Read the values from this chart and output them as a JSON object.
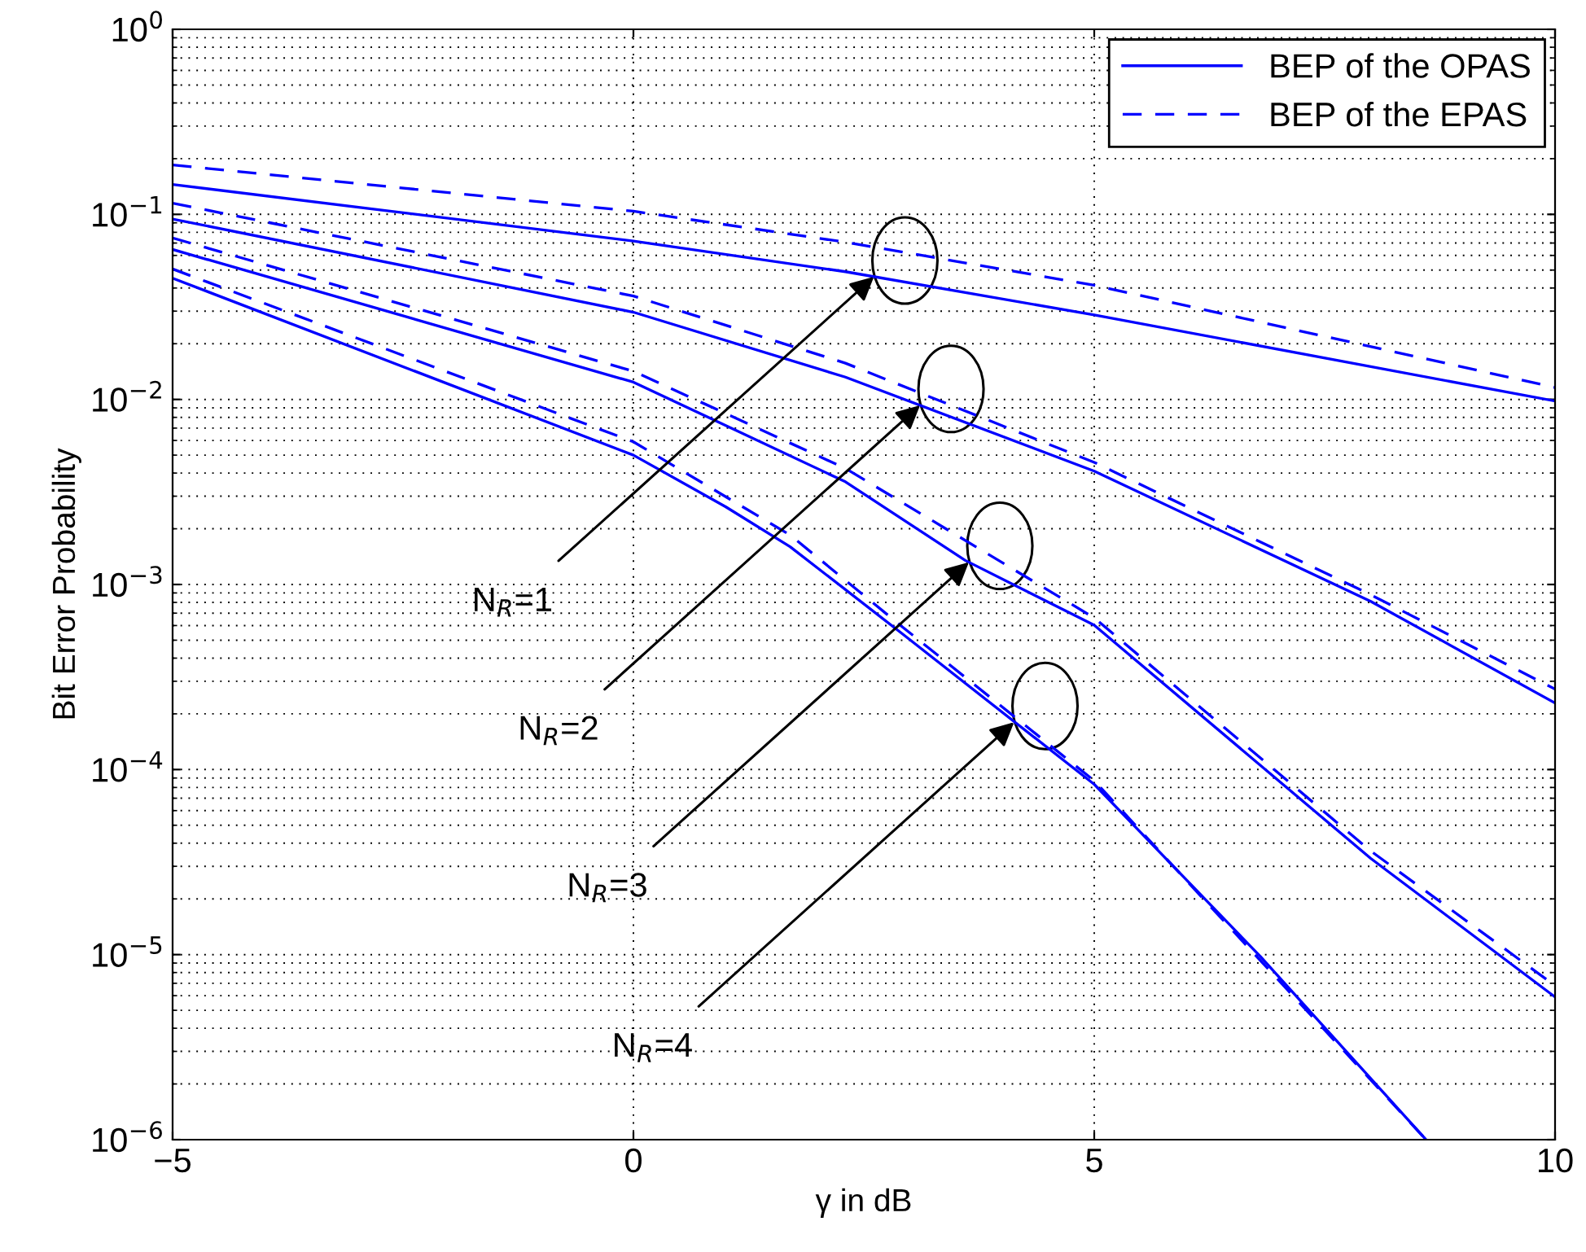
{
  "chart_data": {
    "type": "line",
    "xlabel": "γ in dB",
    "ylabel": "Bit Error Probability",
    "log": "y",
    "grid": true,
    "legend": "top right",
    "xlim": [
      -5,
      10
    ],
    "xticks": [
      {
        "value": -5,
        "label": "−5"
      },
      0,
      5,
      10
    ],
    "ylim": [
      1e-06,
      1
    ],
    "yticks": [
      {
        "value": 1e-06,
        "label": "10$^{−6}$"
      },
      {
        "value": 1e-05,
        "label": "10$^{−5}$"
      },
      {
        "value": 0.0001,
        "label": "10$^{−4}$"
      },
      {
        "value": 0.001,
        "label": "10$^{−3}$"
      },
      {
        "value": 0.01,
        "label": "10$^{−2}$"
      },
      {
        "value": 0.1,
        "label": "10$^{−1}$"
      },
      {
        "value": 1,
        "label": "10$^{0}$"
      }
    ],
    "series": [
      {
        "name": "BEP of the OPAS",
        "color": "#0000ff",
        "line_style": "solid",
        "x": [
          -5,
          0,
          2.3,
          5,
          10
        ],
        "values": [
          0.145,
          0.0718,
          0.049,
          0.0286,
          0.0098
        ]
      },
      {
        "name": "BEP of the EPAS",
        "color": "#0000ff",
        "line_style": "dashed",
        "x": [
          -5,
          0,
          2.3,
          5,
          10
        ],
        "values": [
          0.185,
          0.104,
          0.0708,
          0.0414,
          0.0116
        ]
      },
      {
        "color": "#0000ff",
        "line_style": "solid",
        "x": [
          -5,
          0,
          2.3,
          5,
          8,
          10
        ],
        "values": [
          0.0944,
          0.0296,
          0.0132,
          0.0041,
          0.00081,
          0.000229
        ]
      },
      {
        "color": "#0000ff",
        "line_style": "dashed",
        "x": [
          -5,
          0,
          2.3,
          5,
          8,
          10
        ],
        "values": [
          0.115,
          0.0362,
          0.0157,
          0.00457,
          0.00088,
          0.000272
        ]
      },
      {
        "color": "#0000ff",
        "line_style": "solid",
        "x": [
          -5,
          0,
          2.3,
          3.6,
          5,
          8,
          10
        ],
        "values": [
          0.0646,
          0.0124,
          0.00359,
          0.00135,
          0.000603,
          3.31e-05,
          5.9e-06
        ]
      },
      {
        "color": "#0000ff",
        "line_style": "dashed",
        "x": [
          -5,
          0,
          2.3,
          5,
          8,
          10
        ],
        "values": [
          0.0746,
          0.0142,
          0.00424,
          0.00066,
          3.63e-05,
          6.8e-06
        ]
      },
      {
        "color": "#0000ff",
        "line_style": "solid",
        "x": [
          -5,
          0,
          1,
          1.7,
          2.9,
          5,
          6.8,
          8.6
        ],
        "values": [
          0.0452,
          0.005,
          0.00263,
          0.0016,
          0.00055,
          8.32e-05,
          9.8e-06,
          1e-06
        ]
      },
      {
        "color": "#0000ff",
        "line_style": "dashed",
        "x": [
          -5,
          0,
          1.7,
          2.9,
          5,
          8.6
        ],
        "values": [
          0.0507,
          0.0059,
          0.00185,
          0.0006,
          8.7e-05,
          1e-06
        ]
      }
    ],
    "annotations": [
      {
        "text": "N$_{R}$=1",
        "x": 2.61,
        "y": 0.046
      },
      {
        "text": "N$_{R}$=2",
        "x": 3.11,
        "y": 0.0093
      },
      {
        "text": "N$_{R}$=3",
        "x": 3.64,
        "y": 0.00132
      },
      {
        "text": "N$_{R}$=4",
        "x": 4.13,
        "y": 0.00018
      }
    ]
  }
}
